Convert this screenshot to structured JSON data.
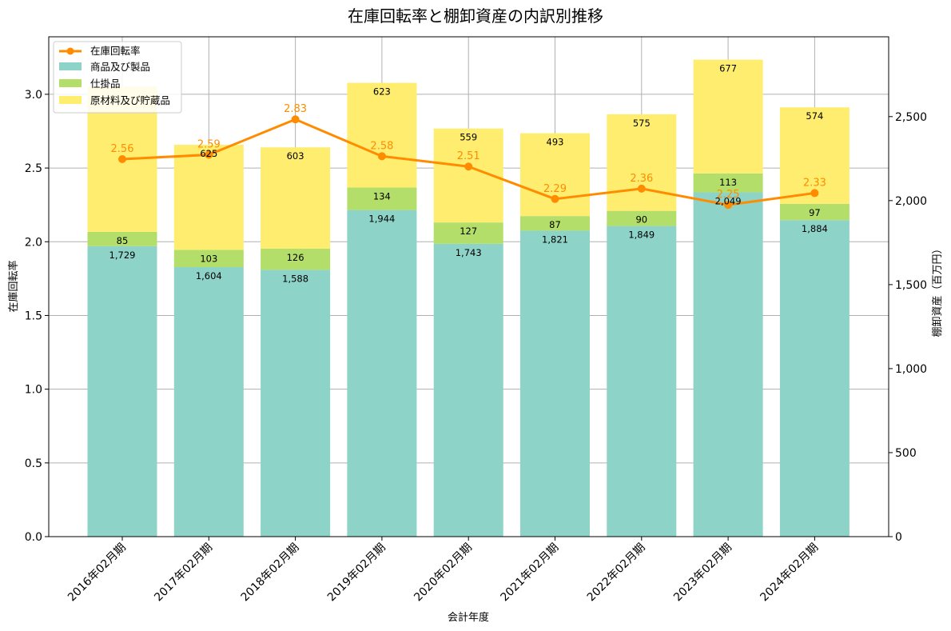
{
  "chart_data": {
    "type": "bar",
    "title": "在庫回転率と棚卸資産の内訳別推移",
    "xlabel": "会計年度",
    "ylabel_left": "在庫回転率",
    "ylabel_right": "棚卸資産（百万円）",
    "categories": [
      "2016年02月期",
      "2017年02月期",
      "2018年02月期",
      "2019年02月期",
      "2020年02月期",
      "2021年02月期",
      "2022年02月期",
      "2023年02月期",
      "2024年02月期"
    ],
    "stacked_series": [
      {
        "name": "商品及び製品",
        "color": "#8dd3c7",
        "values": [
          1729,
          1604,
          1588,
          1944,
          1743,
          1821,
          1849,
          2049,
          1884
        ],
        "labels": [
          "1,729",
          "1,604",
          "1,588",
          "1,944",
          "1,743",
          "1,821",
          "1,849",
          "2,049",
          "1,884"
        ]
      },
      {
        "name": "仕掛品",
        "color": "#b3de69",
        "values": [
          85,
          103,
          126,
          134,
          127,
          87,
          90,
          113,
          97
        ],
        "labels": [
          "85",
          "103",
          "126",
          "134",
          "127",
          "87",
          "90",
          "113",
          "97"
        ]
      },
      {
        "name": "原材料及び貯蔵品",
        "color": "#ffed6f",
        "values": [
          866,
          625,
          603,
          623,
          559,
          493,
          575,
          677,
          574
        ],
        "labels": [
          "",
          "625",
          "603",
          "623",
          "559",
          "493",
          "575",
          "677",
          "574"
        ]
      }
    ],
    "line_series": {
      "name": "在庫回転率",
      "color": "#ff8c00",
      "values": [
        2.56,
        2.59,
        2.83,
        2.58,
        2.51,
        2.29,
        2.36,
        2.25,
        2.33
      ],
      "labels": [
        "2.56",
        "2.59",
        "2.83",
        "2.58",
        "2.51",
        "2.29",
        "2.36",
        "2.25",
        "2.33"
      ]
    },
    "ylim_left": [
      0,
      3.39
    ],
    "yticks_left": [
      "0.0",
      "0.5",
      "1.0",
      "1.5",
      "2.0",
      "2.5",
      "3.0"
    ],
    "ylim_right": [
      0,
      2975
    ],
    "yticks_right": [
      "0",
      "500",
      "1,000",
      "1,500",
      "2,000",
      "2,500"
    ],
    "grid": true,
    "legend_position": "top-left"
  }
}
